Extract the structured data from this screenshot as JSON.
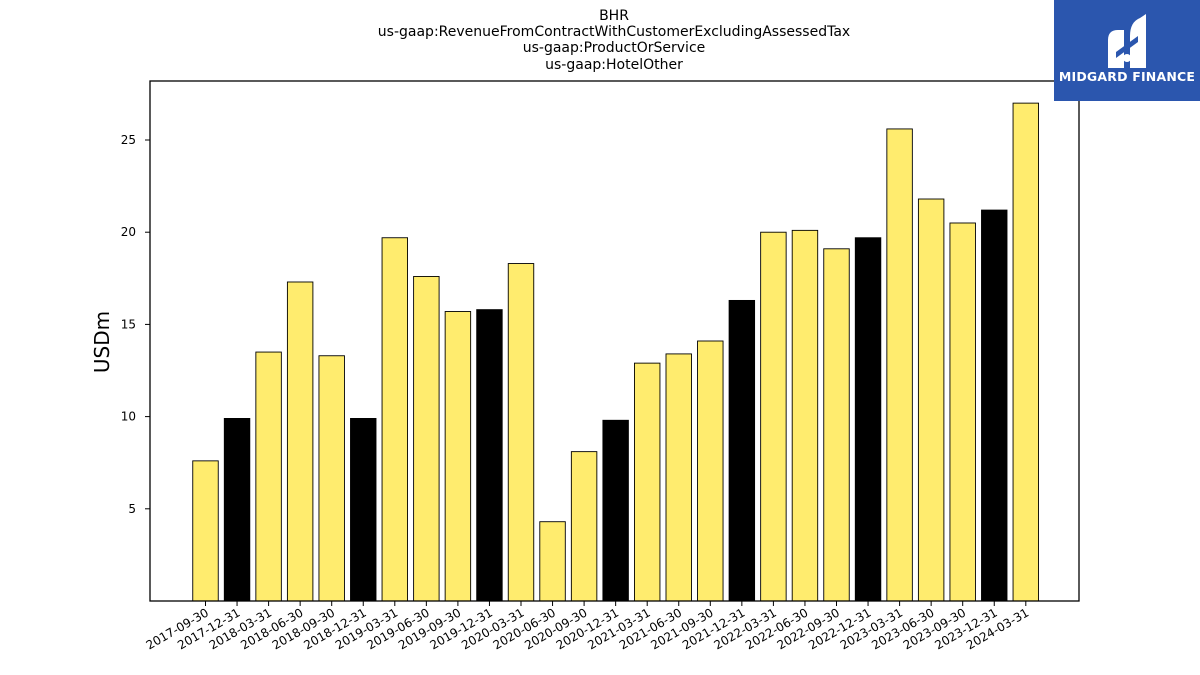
{
  "chart_data": {
    "type": "bar",
    "title_lines": [
      "BHR",
      "us-gaap:RevenueFromContractWithCustomerExcludingAssessedTax",
      "us-gaap:ProductOrService",
      "us-gaap:HotelOther"
    ],
    "ylabel": "USDm",
    "xlabel": "",
    "ylim": [
      0,
      28.2
    ],
    "yticks": [
      5,
      10,
      15,
      20,
      25
    ],
    "grid": false,
    "categories": [
      "2017-09-30",
      "2017-12-31",
      "2018-03-31",
      "2018-06-30",
      "2018-09-30",
      "2018-12-31",
      "2019-03-31",
      "2019-06-30",
      "2019-09-30",
      "2019-12-31",
      "2020-03-31",
      "2020-06-30",
      "2020-09-30",
      "2020-12-31",
      "2021-03-31",
      "2021-06-30",
      "2021-09-30",
      "2021-12-31",
      "2022-03-31",
      "2022-06-30",
      "2022-09-30",
      "2022-12-31",
      "2023-03-31",
      "2023-06-30",
      "2023-09-30",
      "2023-12-31",
      "2024-03-31"
    ],
    "values": [
      7.6,
      9.9,
      13.5,
      17.3,
      13.3,
      9.9,
      19.7,
      17.6,
      15.7,
      15.8,
      18.3,
      4.3,
      8.1,
      9.8,
      12.9,
      13.4,
      14.1,
      16.3,
      20.0,
      20.1,
      19.1,
      19.7,
      25.6,
      21.8,
      20.5,
      21.2,
      27.0
    ],
    "bar_kind": [
      "Q",
      "FY",
      "Q",
      "Q",
      "Q",
      "FY",
      "Q",
      "Q",
      "Q",
      "FY",
      "Q",
      "Q",
      "Q",
      "FY",
      "Q",
      "Q",
      "Q",
      "FY",
      "Q",
      "Q",
      "Q",
      "FY",
      "Q",
      "Q",
      "Q",
      "FY",
      "Q"
    ],
    "colors": {
      "quarter": "#ffec6e",
      "year_end": "#000000",
      "edge": "#000000"
    }
  },
  "logo": {
    "text": "MIDGARD FINANCE",
    "background": "#2b56ae",
    "icon": "midgard-logo-icon"
  }
}
